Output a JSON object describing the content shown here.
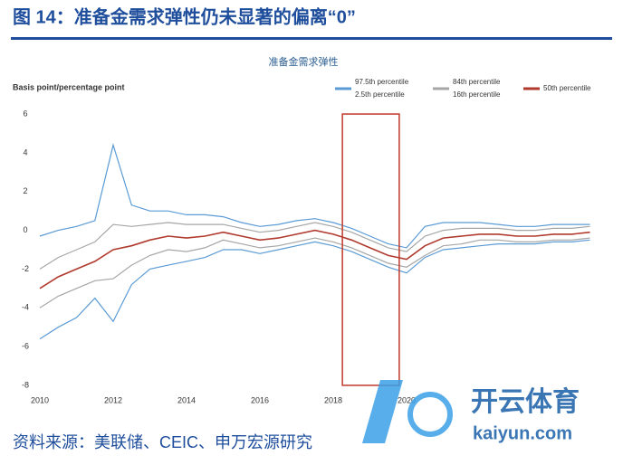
{
  "header": {
    "title": "图 14：准备金需求弹性仍未显著的偏离“0”"
  },
  "chart_data": {
    "type": "line",
    "title": "准备金需求弹性",
    "y_label": "Basis point/percentage point",
    "x": [
      2010,
      2010.5,
      2011,
      2011.5,
      2012,
      2012.5,
      2013,
      2013.5,
      2014,
      2014.5,
      2015,
      2015.5,
      2016,
      2016.5,
      2017,
      2017.5,
      2018,
      2018.5,
      2019,
      2019.5,
      2020,
      2020.5,
      2021,
      2021.5,
      2022,
      2022.5,
      2023,
      2023.5,
      2024,
      2024.5,
      2025
    ],
    "series": [
      {
        "name": "97.5th percentile",
        "color": "#5b9bd5",
        "values": [
          -0.3,
          0.0,
          0.2,
          0.5,
          4.4,
          1.3,
          1.0,
          1.0,
          0.8,
          0.8,
          0.7,
          0.4,
          0.2,
          0.3,
          0.5,
          0.6,
          0.4,
          0.1,
          -0.3,
          -0.7,
          -0.9,
          0.2,
          0.4,
          0.4,
          0.4,
          0.3,
          0.2,
          0.2,
          0.3,
          0.3,
          0.3
        ]
      },
      {
        "name": "2.5th percentile",
        "color": "#5b9bd5",
        "values": [
          -5.6,
          -5.0,
          -4.5,
          -3.5,
          -4.7,
          -2.8,
          -2.0,
          -1.8,
          -1.6,
          -1.4,
          -1.0,
          -1.0,
          -1.2,
          -1.0,
          -0.8,
          -0.6,
          -0.8,
          -1.1,
          -1.5,
          -1.9,
          -2.2,
          -1.4,
          -1.0,
          -0.9,
          -0.8,
          -0.7,
          -0.7,
          -0.7,
          -0.6,
          -0.6,
          -0.5
        ]
      },
      {
        "name": "84th percentile",
        "color": "#a6a6a6",
        "values": [
          -2.0,
          -1.4,
          -1.0,
          -0.6,
          0.3,
          0.2,
          0.3,
          0.4,
          0.3,
          0.3,
          0.3,
          0.1,
          -0.1,
          0.0,
          0.2,
          0.4,
          0.2,
          -0.1,
          -0.5,
          -0.9,
          -1.1,
          -0.3,
          0.0,
          0.1,
          0.1,
          0.1,
          0.0,
          0.0,
          0.1,
          0.1,
          0.2
        ]
      },
      {
        "name": "16th percentile",
        "color": "#a6a6a6",
        "values": [
          -4.0,
          -3.4,
          -3.0,
          -2.6,
          -2.5,
          -1.8,
          -1.3,
          -1.0,
          -1.1,
          -0.9,
          -0.5,
          -0.7,
          -0.9,
          -0.8,
          -0.6,
          -0.4,
          -0.6,
          -0.9,
          -1.3,
          -1.7,
          -1.9,
          -1.3,
          -0.8,
          -0.7,
          -0.5,
          -0.5,
          -0.6,
          -0.6,
          -0.5,
          -0.5,
          -0.4
        ]
      },
      {
        "name": "50th percentile",
        "color": "#b03a2e",
        "values": [
          -3.0,
          -2.4,
          -2.0,
          -1.6,
          -1.0,
          -0.8,
          -0.5,
          -0.3,
          -0.4,
          -0.3,
          -0.1,
          -0.3,
          -0.5,
          -0.4,
          -0.2,
          0.0,
          -0.2,
          -0.5,
          -0.9,
          -1.3,
          -1.5,
          -0.8,
          -0.4,
          -0.3,
          -0.2,
          -0.2,
          -0.3,
          -0.3,
          -0.2,
          -0.2,
          -0.1
        ]
      }
    ],
    "xlim": [
      2010,
      2025
    ],
    "xticks": [
      2010,
      2012,
      2014,
      2016,
      2018,
      2020
    ],
    "ylim": [
      -8.3,
      6.3
    ],
    "yticks": [
      6,
      4,
      2,
      0,
      -2,
      -4,
      -6,
      -8
    ],
    "grid": false,
    "highlight": {
      "color": "#c0392b",
      "x": [
        2018.25,
        2019.8
      ],
      "y": [
        -8,
        6
      ]
    }
  },
  "footer": {
    "source": "资料来源：美联储、CEIC、申万宏源研究"
  },
  "watermark": {
    "brand": "开云体育",
    "url": "kaiyun.com"
  }
}
